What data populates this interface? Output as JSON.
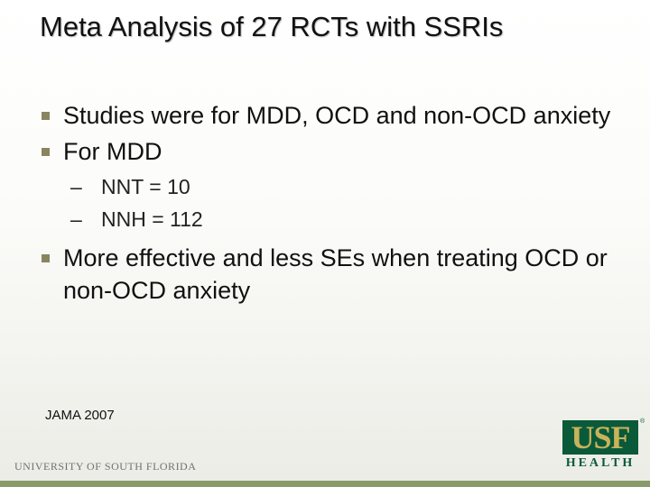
{
  "slide": {
    "title": "Meta Analysis of 27 RCTs with SSRIs",
    "bullets": [
      "Studies were for MDD, OCD and non-OCD anxiety",
      "For MDD",
      "More effective and less SEs when treating OCD or non-OCD anxiety"
    ],
    "sub_bullets": [
      "NNT = 10",
      "NNH = 112"
    ],
    "dash": "–",
    "reference": "JAMA 2007"
  },
  "footer": {
    "university": "UNIVERSITY OF SOUTH FLORIDA",
    "logo_main": "USF",
    "logo_sub": "HEALTH",
    "logo_mark": "®"
  },
  "colors": {
    "bullet": "#8a8560",
    "logo_green": "#0a5a3a",
    "logo_gold": "#c9b35a"
  }
}
